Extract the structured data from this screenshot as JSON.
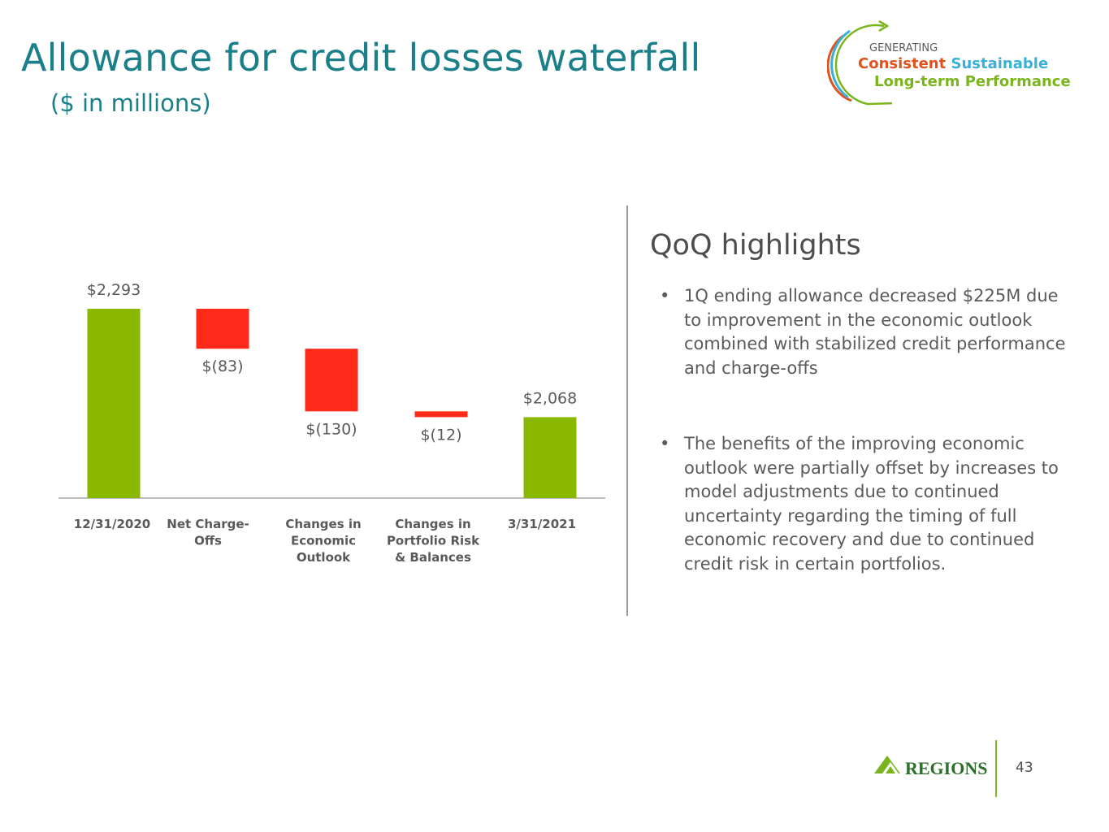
{
  "header": {
    "title": "Allowance for credit losses waterfall",
    "subtitle": "($ in millions)"
  },
  "top_logo": {
    "line1": "GENERATING",
    "word_consistent": "Consistent",
    "word_sustainable": "Sustainable",
    "line3": "Long-term Performance",
    "colors": {
      "orange": "#e0531f",
      "blue": "#3ab0d8",
      "green": "#7ab51d"
    }
  },
  "highlights": {
    "title": "QoQ highlights",
    "bullets": [
      "1Q ending allowance decreased $225M due to improvement in the economic outlook combined with stabilized credit performance and charge-offs",
      "The benefits of the improving economic outlook were partially offset by increases to model adjustments due to continued uncertainty regarding the timing of full economic recovery and due to continued credit risk in certain portfolios."
    ]
  },
  "footer": {
    "brand": "REGIONS",
    "page_number": "43"
  },
  "colors": {
    "title": "#1b7f8a",
    "total_bar": "#8ab800",
    "decrease_bar": "#ff2a1a",
    "axis": "#a6a6a6"
  },
  "chart_data": {
    "type": "bar",
    "subtype": "waterfall",
    "categories": [
      [
        "12/31/2020"
      ],
      [
        "Net Charge-",
        "Offs"
      ],
      [
        "Changes in",
        "Economic",
        "Outlook"
      ],
      [
        "Changes in",
        "Portfolio Risk",
        "& Balances"
      ],
      [
        "3/31/2021"
      ]
    ],
    "steps": [
      {
        "kind": "total",
        "value": 2293,
        "label": "$2,293"
      },
      {
        "kind": "decrease",
        "value": -83,
        "label": "$(83)"
      },
      {
        "kind": "decrease",
        "value": -130,
        "label": "$(130)"
      },
      {
        "kind": "decrease",
        "value": -12,
        "label": "$(12)"
      },
      {
        "kind": "total",
        "value": 2068,
        "label": "$2,068"
      }
    ],
    "ylim": [
      1900,
      2293
    ],
    "title": "",
    "xlabel": "",
    "ylabel": ""
  }
}
